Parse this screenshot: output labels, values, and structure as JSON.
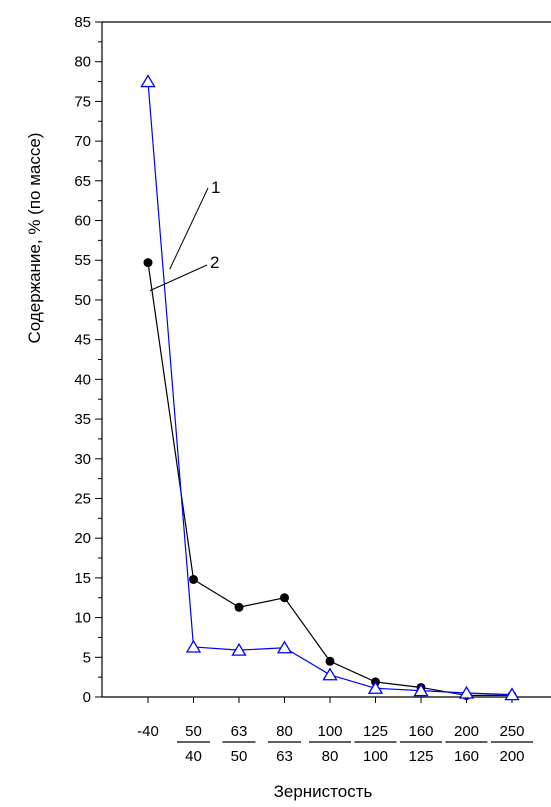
{
  "chart_data": {
    "type": "line",
    "title": "",
    "xlabel": "Зернистость",
    "ylabel": "Содержание, % (по массе)",
    "ylim": [
      0,
      85
    ],
    "y_ticks": [
      "0",
      "5",
      "10",
      "15",
      "20",
      "25",
      "30",
      "35",
      "40",
      "45",
      "50",
      "55",
      "60",
      "65",
      "70",
      "75",
      "80",
      "85"
    ],
    "categories": [
      {
        "top": "-40",
        "bottom": ""
      },
      {
        "top": "50",
        "bottom": "40"
      },
      {
        "top": "63",
        "bottom": "50"
      },
      {
        "top": "80",
        "bottom": "63"
      },
      {
        "top": "100",
        "bottom": "80"
      },
      {
        "top": "125",
        "bottom": "100"
      },
      {
        "top": "160",
        "bottom": "125"
      },
      {
        "top": "200",
        "bottom": "160"
      },
      {
        "top": "250",
        "bottom": "200"
      }
    ],
    "series": [
      {
        "name": "1",
        "color": "#0000ff",
        "marker": "open-triangle",
        "values": [
          77.5,
          6.3,
          5.9,
          6.2,
          2.8,
          1.1,
          0.8,
          0.5,
          0.3
        ]
      },
      {
        "name": "2",
        "color": "#000000",
        "marker": "filled-circle",
        "values": [
          54.7,
          14.8,
          11.3,
          12.5,
          4.5,
          1.9,
          1.2,
          0.2,
          0.2
        ]
      }
    ],
    "annotations": [
      "1",
      "2"
    ],
    "grid": false
  }
}
